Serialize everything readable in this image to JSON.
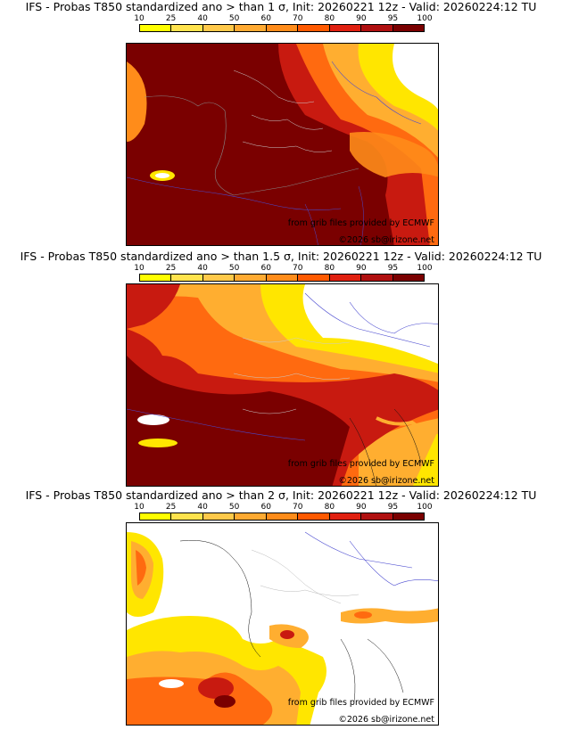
{
  "legend": {
    "ticks": [
      "10",
      "25",
      "40",
      "50",
      "60",
      "70",
      "80",
      "90",
      "95",
      "100"
    ],
    "colors": [
      "#ffff00",
      "#ffe34d",
      "#ffc94a",
      "#ffaa32",
      "#ff8c1a",
      "#ff5a00",
      "#e02010",
      "#b01010",
      "#7a0000"
    ]
  },
  "panels": [
    {
      "title": "IFS - Probas T850  standardized ano > than 1 σ, Init: 20260221 12z - Valid: 20260224:12 TU",
      "threshold": "1 σ",
      "credit_source": "from grib files provided by ECMWF",
      "credit_copyright": "©2026 sb@irizone.net"
    },
    {
      "title": "IFS - Probas T850  standardized ano > than 1.5 σ, Init: 20260221 12z - Valid: 20260224:12 TU",
      "threshold": "1.5 σ",
      "credit_source": "from grib files provided by ECMWF",
      "credit_copyright": "©2026 sb@irizone.net"
    },
    {
      "title": "IFS - Probas T850  standardized ano > than 2 σ, Init: 20260221 12z - Valid: 20260224:12 TU",
      "threshold": "2 σ",
      "credit_source": "from grib files provided by ECMWF",
      "credit_copyright": "©2026 sb@irizone.net"
    }
  ]
}
